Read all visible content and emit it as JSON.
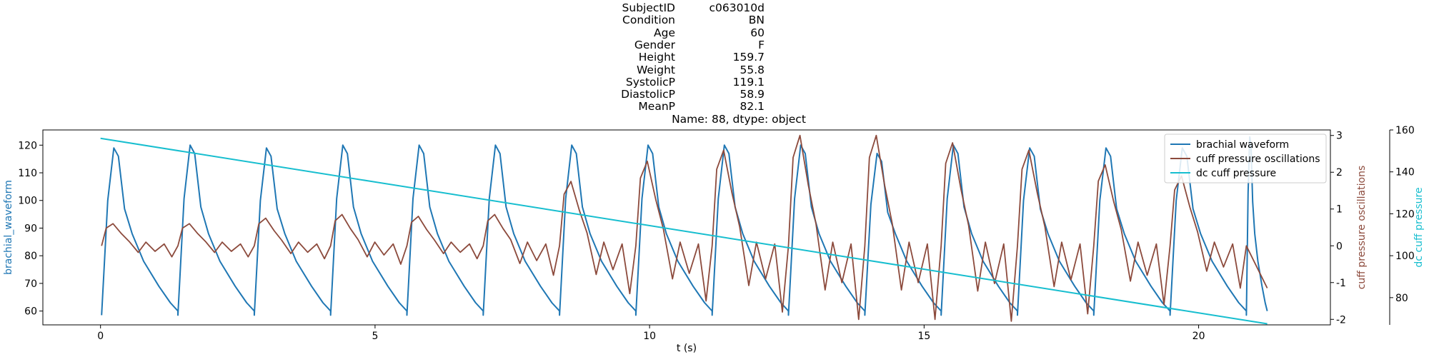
{
  "title_block": {
    "rows": [
      {
        "key": "SubjectID",
        "value": "c063010d"
      },
      {
        "key": "Condition",
        "value": "BN"
      },
      {
        "key": "Age",
        "value": "60"
      },
      {
        "key": "Gender",
        "value": "F"
      },
      {
        "key": "Height",
        "value": "159.7"
      },
      {
        "key": "Weight",
        "value": "55.8"
      },
      {
        "key": "SystolicP",
        "value": "119.1"
      },
      {
        "key": "DiastolicP",
        "value": "58.9"
      },
      {
        "key": "MeanP",
        "value": "82.1"
      }
    ],
    "footer": "Name: 88, dtype: object"
  },
  "colors": {
    "brachial": "#1f77b4",
    "cuff_osc": "#8c4a3c",
    "dc_cuff": "#17becf"
  },
  "chart_data": {
    "type": "line",
    "xlabel": "t (s)",
    "xlim": [
      -1.05,
      22.4
    ],
    "x_ticks": [
      0,
      5,
      10,
      15,
      20
    ],
    "left_axis": {
      "label": "brachial_waveform",
      "ylim": [
        55,
        125.5
      ],
      "ticks": [
        60,
        70,
        80,
        90,
        100,
        110,
        120
      ]
    },
    "right_axis_1": {
      "label": "cuff pressure oscillations",
      "ylim": [
        -2.15,
        3.15
      ],
      "ticks": [
        -2,
        -1,
        0,
        1,
        2,
        3
      ]
    },
    "right_axis_2": {
      "label": "dc cuff pressure",
      "ylim": [
        67,
        160
      ],
      "ticks": [
        80,
        100,
        120,
        140,
        160
      ]
    },
    "legend": {
      "position": "top-right",
      "entries": [
        "brachial waveform",
        "cuff pressure oscillations",
        "dc cuff pressure"
      ]
    },
    "series": [
      {
        "name": "brachial waveform",
        "axis": "left",
        "beat_starts": [
          0.02,
          1.41,
          2.8,
          4.19,
          5.58,
          6.97,
          8.36,
          9.75,
          11.14,
          12.53,
          13.92,
          15.31,
          16.7,
          18.09,
          19.48,
          20.87
        ],
        "beat_template": {
          "phase": [
            0,
            0.08,
            0.16,
            0.22,
            0.3,
            0.4,
            0.55,
            0.75,
            0.9,
            1.0
          ],
          "value": [
            58.5,
            100,
            119,
            116,
            97,
            88,
            78,
            69,
            63,
            60
          ]
        },
        "beat_peaks": [
          119,
          120,
          119,
          120,
          120,
          120,
          120,
          120,
          120,
          120,
          117,
          120,
          119,
          119,
          119,
          123
        ],
        "end_x": 21.25
      },
      {
        "name": "cuff pressure oscillations",
        "axis": "right_1",
        "envelope": {
          "beat_peaks": [
            0.6,
            0.6,
            0.75,
            0.85,
            0.8,
            0.85,
            1.75,
            2.3,
            2.6,
            3.0,
            3.0,
            2.8,
            2.6,
            2.2,
            1.9
          ],
          "beat_troughs": [
            -0.3,
            -0.3,
            -0.35,
            -0.5,
            -0.35,
            -0.8,
            -1.3,
            -1.5,
            -1.8,
            -2.0,
            -2.0,
            -2.05,
            -1.85,
            -1.6,
            -1.15
          ]
        },
        "start_x": 0,
        "end_x": 21.25
      },
      {
        "name": "dc cuff pressure",
        "axis": "right_2",
        "x": [
          0,
          21.25
        ],
        "values": [
          156,
          67.5
        ]
      }
    ]
  }
}
